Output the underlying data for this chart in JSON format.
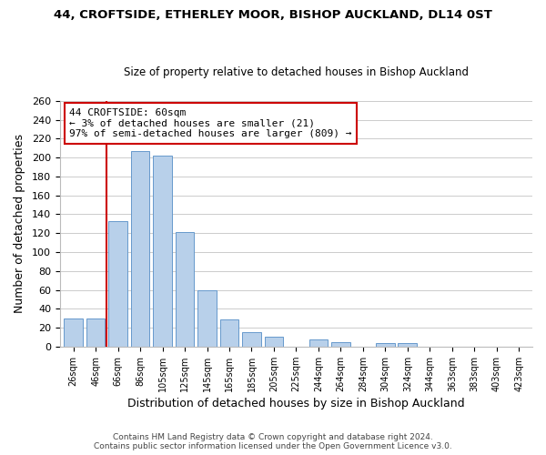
{
  "title1": "44, CROFTSIDE, ETHERLEY MOOR, BISHOP AUCKLAND, DL14 0ST",
  "title2": "Size of property relative to detached houses in Bishop Auckland",
  "xlabel": "Distribution of detached houses by size in Bishop Auckland",
  "ylabel": "Number of detached properties",
  "bar_labels": [
    "26sqm",
    "46sqm",
    "66sqm",
    "86sqm",
    "105sqm",
    "125sqm",
    "145sqm",
    "165sqm",
    "185sqm",
    "205sqm",
    "225sqm",
    "244sqm",
    "264sqm",
    "284sqm",
    "304sqm",
    "324sqm",
    "344sqm",
    "363sqm",
    "383sqm",
    "403sqm",
    "423sqm"
  ],
  "bar_heights": [
    30,
    30,
    133,
    207,
    202,
    121,
    60,
    29,
    15,
    10,
    0,
    8,
    5,
    0,
    4,
    4,
    0,
    0,
    0,
    0,
    0
  ],
  "bar_color": "#b8d0ea",
  "bar_edge_color": "#6699cc",
  "vline_color": "#cc0000",
  "vline_x_index": 2,
  "annotation_text": "44 CROFTSIDE: 60sqm\n← 3% of detached houses are smaller (21)\n97% of semi-detached houses are larger (809) →",
  "annotation_box_color": "#ffffff",
  "annotation_box_edge": "#cc0000",
  "ylim": [
    0,
    260
  ],
  "yticks": [
    0,
    20,
    40,
    60,
    80,
    100,
    120,
    140,
    160,
    180,
    200,
    220,
    240,
    260
  ],
  "footer1": "Contains HM Land Registry data © Crown copyright and database right 2024.",
  "footer2": "Contains public sector information licensed under the Open Government Licence v3.0.",
  "background_color": "#ffffff",
  "grid_color": "#cccccc"
}
